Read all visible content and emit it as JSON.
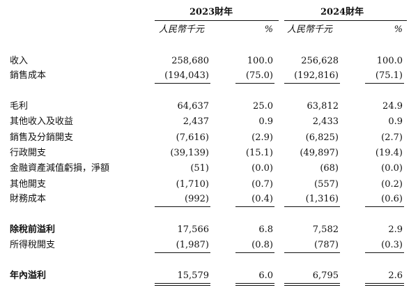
{
  "header": {
    "year1": "2023財年",
    "year2": "2024財年",
    "unit1": "人民幣千元",
    "pct1": "%",
    "unit2": "人民幣千元",
    "pct2": "%"
  },
  "rows": [
    {
      "label": "收入",
      "v1": "258,680",
      "p1": "100.0",
      "v2": "256,628",
      "p2": "100.0"
    },
    {
      "label": "銷售成本",
      "v1": "(194,043)",
      "p1": "(75.0)",
      "v2": "(192,816)",
      "p2": "(75.1)"
    },
    {
      "label": "毛利",
      "v1": "64,637",
      "p1": "25.0",
      "v2": "63,812",
      "p2": "24.9"
    },
    {
      "label": "其他收入及收益",
      "v1": "2,437",
      "p1": "0.9",
      "v2": "2,433",
      "p2": "0.9"
    },
    {
      "label": "銷售及分銷開支",
      "v1": "(7,616)",
      "p1": "(2.9)",
      "v2": "(6,825)",
      "p2": "(2.7)"
    },
    {
      "label": "行政開支",
      "v1": "(39,139)",
      "p1": "(15.1)",
      "v2": "(49,897)",
      "p2": "(19.4)"
    },
    {
      "label": "金融資產減值虧損，淨額",
      "v1": "(51)",
      "p1": "(0.0)",
      "v2": "(68)",
      "p2": "(0.0)"
    },
    {
      "label": "其他開支",
      "v1": "(1,710)",
      "p1": "(0.7)",
      "v2": "(557)",
      "p2": "(0.2)"
    },
    {
      "label": "財務成本",
      "v1": "(992)",
      "p1": "(0.4)",
      "v2": "(1,316)",
      "p2": "(0.6)"
    },
    {
      "label": "除稅前溢利",
      "v1": "17,566",
      "p1": "6.8",
      "v2": "7,582",
      "p2": "2.9"
    },
    {
      "label": "所得稅開支",
      "v1": "(1,987)",
      "p1": "(0.8)",
      "v2": "(787)",
      "p2": "(0.3)"
    },
    {
      "label": "年內溢利",
      "v1": "15,579",
      "p1": "6.0",
      "v2": "6,795",
      "p2": "2.6"
    }
  ]
}
